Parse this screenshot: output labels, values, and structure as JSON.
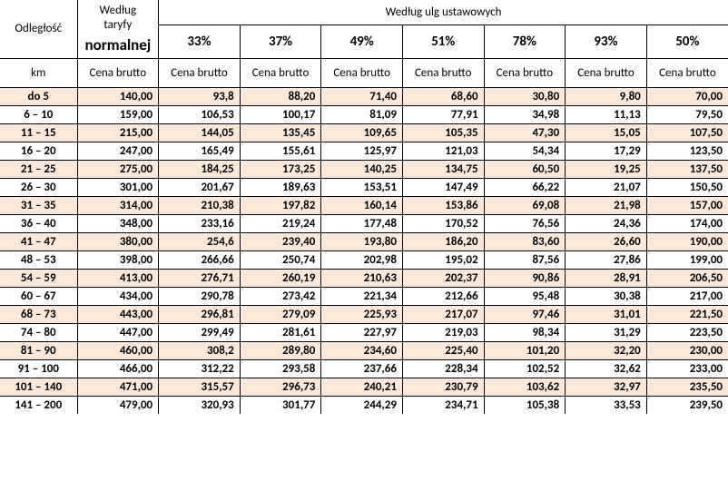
{
  "header": {
    "distance_label": "Odległość",
    "normal_tariff_line1": "Według",
    "normal_tariff_line2": "taryfy",
    "normal_tariff_line3": "normalnej",
    "discounts_title": "Według ulg ustawowych",
    "km_label": "km",
    "gross_price_label": "Cena brutto",
    "percents": [
      "33%",
      "37%",
      "49%",
      "51%",
      "78%",
      "93%",
      "50%"
    ]
  },
  "rows": [
    {
      "dist": "do 5",
      "vals": [
        "140,00",
        "93,8",
        "88,20",
        "71,40",
        "68,60",
        "30,80",
        "9,80",
        "70,00"
      ],
      "shade": true
    },
    {
      "dist": "6 – 10",
      "vals": [
        "159,00",
        "106,53",
        "100,17",
        "81,09",
        "77,91",
        "34,98",
        "11,13",
        "79,50"
      ],
      "shade": false
    },
    {
      "dist": "11 – 15",
      "vals": [
        "215,00",
        "144,05",
        "135,45",
        "109,65",
        "105,35",
        "47,30",
        "15,05",
        "107,50"
      ],
      "shade": true
    },
    {
      "dist": "16 – 20",
      "vals": [
        "247,00",
        "165,49",
        "155,61",
        "125,97",
        "121,03",
        "54,34",
        "17,29",
        "123,50"
      ],
      "shade": false
    },
    {
      "dist": "21 – 25",
      "vals": [
        "275,00",
        "184,25",
        "173,25",
        "140,25",
        "134,75",
        "60,50",
        "19,25",
        "137,50"
      ],
      "shade": true
    },
    {
      "dist": "26 – 30",
      "vals": [
        "301,00",
        "201,67",
        "189,63",
        "153,51",
        "147,49",
        "66,22",
        "21,07",
        "150,50"
      ],
      "shade": false
    },
    {
      "dist": "31 – 35",
      "vals": [
        "314,00",
        "210,38",
        "197,82",
        "160,14",
        "153,86",
        "69,08",
        "21,98",
        "157,00"
      ],
      "shade": true
    },
    {
      "dist": "36 – 40",
      "vals": [
        "348,00",
        "233,16",
        "219,24",
        "177,48",
        "170,52",
        "76,56",
        "24,36",
        "174,00"
      ],
      "shade": false
    },
    {
      "dist": "41 – 47",
      "vals": [
        "380,00",
        "254,6",
        "239,40",
        "193,80",
        "186,20",
        "83,60",
        "26,60",
        "190,00"
      ],
      "shade": true
    },
    {
      "dist": "48 – 53",
      "vals": [
        "398,00",
        "266,66",
        "250,74",
        "202,98",
        "195,02",
        "87,56",
        "27,86",
        "199,00"
      ],
      "shade": false
    },
    {
      "dist": "54 – 59",
      "vals": [
        "413,00",
        "276,71",
        "260,19",
        "210,63",
        "202,37",
        "90,86",
        "28,91",
        "206,50"
      ],
      "shade": true
    },
    {
      "dist": "60 – 67",
      "vals": [
        "434,00",
        "290,78",
        "273,42",
        "221,34",
        "212,66",
        "95,48",
        "30,38",
        "217,00"
      ],
      "shade": false
    },
    {
      "dist": "68 – 73",
      "vals": [
        "443,00",
        "296,81",
        "279,09",
        "225,93",
        "217,07",
        "97,46",
        "31,01",
        "221,50"
      ],
      "shade": true
    },
    {
      "dist": "74 – 80",
      "vals": [
        "447,00",
        "299,49",
        "281,61",
        "227,97",
        "219,03",
        "98,34",
        "31,29",
        "223,50"
      ],
      "shade": false
    },
    {
      "dist": "81 – 90",
      "vals": [
        "460,00",
        "308,2",
        "289,80",
        "234,60",
        "225,40",
        "101,20",
        "32,20",
        "230,00"
      ],
      "shade": true
    },
    {
      "dist": "91 – 100",
      "vals": [
        "466,00",
        "312,22",
        "293,58",
        "237,66",
        "228,34",
        "102,52",
        "32,62",
        "233,00"
      ],
      "shade": false
    },
    {
      "dist": "101 – 140",
      "vals": [
        "471,00",
        "315,57",
        "296,73",
        "240,21",
        "230,79",
        "103,62",
        "32,97",
        "235,50"
      ],
      "shade": true
    },
    {
      "dist": "141 – 200",
      "vals": [
        "479,00",
        "320,93",
        "301,77",
        "244,29",
        "234,71",
        "105,38",
        "33,53",
        "239,50"
      ],
      "shade": false
    }
  ]
}
